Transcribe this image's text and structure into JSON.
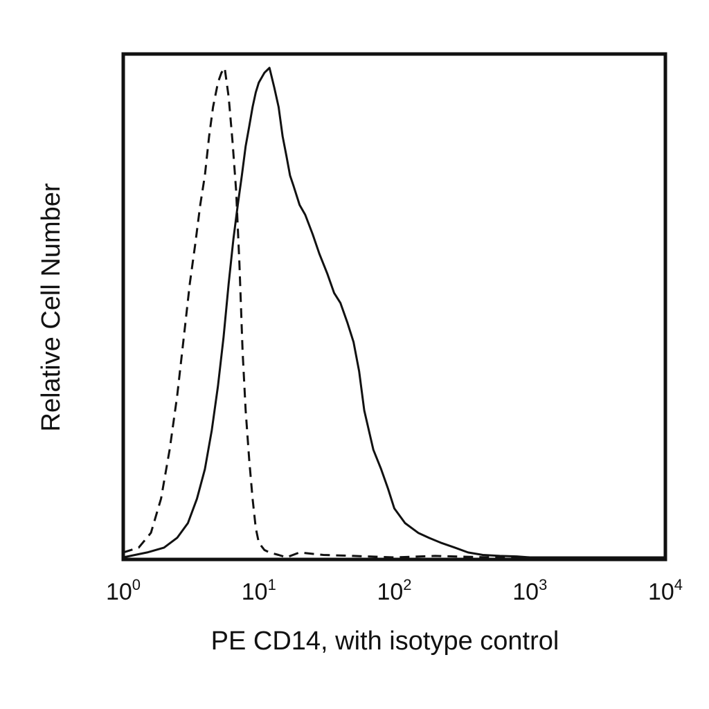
{
  "chart_data": {
    "type": "line",
    "title": "",
    "xlabel": "PE CD14, with isotype control",
    "ylabel": "Relative Cell Number",
    "x_scale": "log",
    "xlim": [
      1,
      10000
    ],
    "ylim": [
      0,
      1
    ],
    "grid": false,
    "legend": "none",
    "x_ticks": [
      {
        "value": 1,
        "base": "10",
        "exp": "0"
      },
      {
        "value": 10,
        "base": "10",
        "exp": "1"
      },
      {
        "value": 100,
        "base": "10",
        "exp": "2"
      },
      {
        "value": 1000,
        "base": "10",
        "exp": "3"
      },
      {
        "value": 10000,
        "base": "10",
        "exp": "4"
      }
    ],
    "series": [
      {
        "style": "dashed",
        "color": "#111111",
        "x": [
          1.0,
          1.3,
          1.6,
          1.9,
          2.2,
          2.5,
          2.8,
          3.1,
          3.4,
          3.7,
          4.0,
          4.3,
          4.6,
          5.0,
          5.3,
          5.6,
          6.0,
          6.4,
          6.8,
          7.2,
          7.6,
          8.0,
          8.5,
          9.0,
          9.5,
          10.0,
          11.0,
          12.0,
          14.0,
          16.0,
          20.0,
          30.0,
          50.0,
          100.0,
          200.0,
          500.0,
          1000.0,
          10000.0
        ],
        "y": [
          0.01,
          0.02,
          0.05,
          0.12,
          0.22,
          0.33,
          0.45,
          0.56,
          0.64,
          0.72,
          0.78,
          0.86,
          0.92,
          0.97,
          0.99,
          1.0,
          0.94,
          0.85,
          0.75,
          0.6,
          0.42,
          0.3,
          0.2,
          0.12,
          0.06,
          0.03,
          0.015,
          0.01,
          0.005,
          0.0,
          0.01,
          0.005,
          0.003,
          0.0,
          0.003,
          0.0,
          0.0,
          0.0
        ]
      },
      {
        "style": "solid",
        "color": "#111111",
        "x": [
          1.0,
          1.5,
          2.0,
          2.5,
          3.0,
          3.5,
          4.0,
          4.5,
          5.0,
          5.5,
          6.0,
          6.5,
          7.0,
          7.5,
          8.0,
          8.5,
          9.0,
          9.5,
          10.0,
          11.0,
          12.0,
          13.0,
          14.0,
          15.0,
          16.0,
          17.0,
          18.0,
          20.0,
          22.0,
          25.0,
          28.0,
          32.0,
          36.0,
          40.0,
          45.0,
          50.0,
          55.0,
          60.0,
          70.0,
          80.0,
          90.0,
          100.0,
          120.0,
          150.0,
          180.0,
          220.0,
          280.0,
          350.0,
          450.0,
          600.0,
          800.0,
          1000.0,
          10000.0
        ],
        "y": [
          0.0,
          0.01,
          0.02,
          0.04,
          0.07,
          0.12,
          0.18,
          0.26,
          0.35,
          0.45,
          0.56,
          0.65,
          0.72,
          0.78,
          0.84,
          0.88,
          0.92,
          0.95,
          0.97,
          0.99,
          1.0,
          0.96,
          0.92,
          0.86,
          0.82,
          0.78,
          0.76,
          0.72,
          0.7,
          0.66,
          0.62,
          0.58,
          0.54,
          0.52,
          0.48,
          0.44,
          0.38,
          0.3,
          0.22,
          0.18,
          0.14,
          0.1,
          0.07,
          0.05,
          0.04,
          0.03,
          0.02,
          0.01,
          0.005,
          0.003,
          0.002,
          0.0,
          0.0
        ]
      }
    ]
  }
}
